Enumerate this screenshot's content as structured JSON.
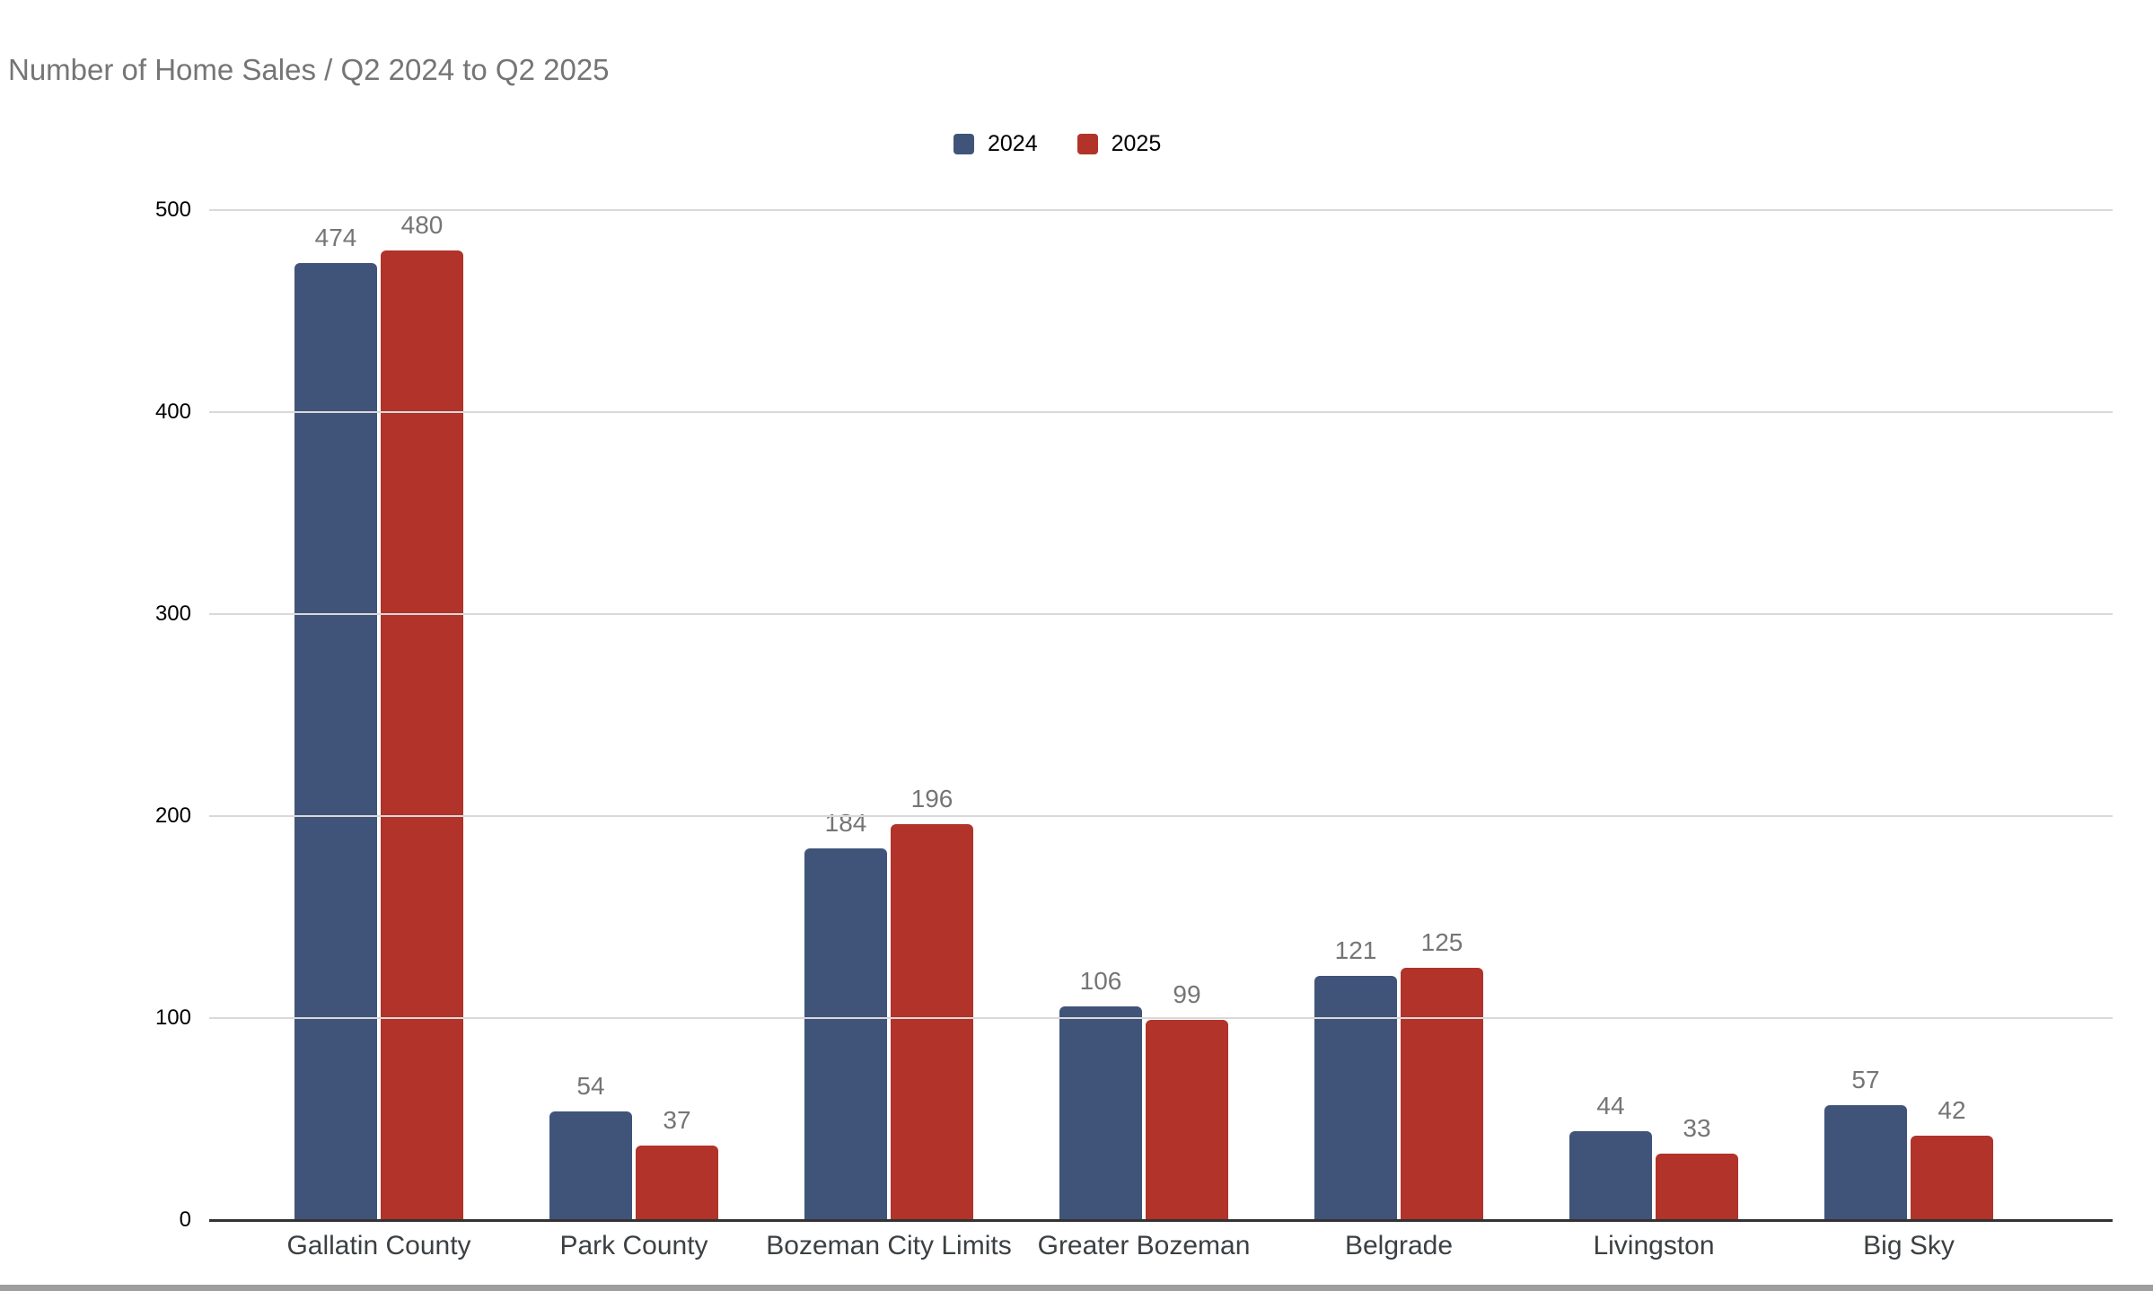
{
  "chart_data": {
    "type": "bar",
    "title": "Number of Home Sales / Q2 2024 to Q2 2025",
    "categories": [
      "Gallatin County",
      "Park County",
      "Bozeman City Limits",
      "Greater Bozeman",
      "Belgrade",
      "Livingston",
      "Big Sky"
    ],
    "series": [
      {
        "name": "2024",
        "color": "#40547a",
        "values": [
          474,
          54,
          184,
          106,
          121,
          44,
          57
        ]
      },
      {
        "name": "2025",
        "color": "#b1332a",
        "values": [
          480,
          37,
          196,
          99,
          125,
          33,
          42
        ]
      }
    ],
    "xlabel": "",
    "ylabel": "",
    "ylim": [
      0,
      500
    ],
    "yticks": [
      0,
      100,
      200,
      300,
      400,
      500
    ],
    "grid": "horizontal",
    "legend_position": "top-center",
    "value_labels_shown": true
  },
  "colors": {
    "title_text": "#757575",
    "value_label_text": "#757575",
    "axis_label_text": "#000000",
    "category_label_text": "#3c4043",
    "gridline": "#d9d9d9",
    "baseline": "#333333",
    "bottom_strip": "#9e9e9e",
    "background": "#ffffff"
  }
}
